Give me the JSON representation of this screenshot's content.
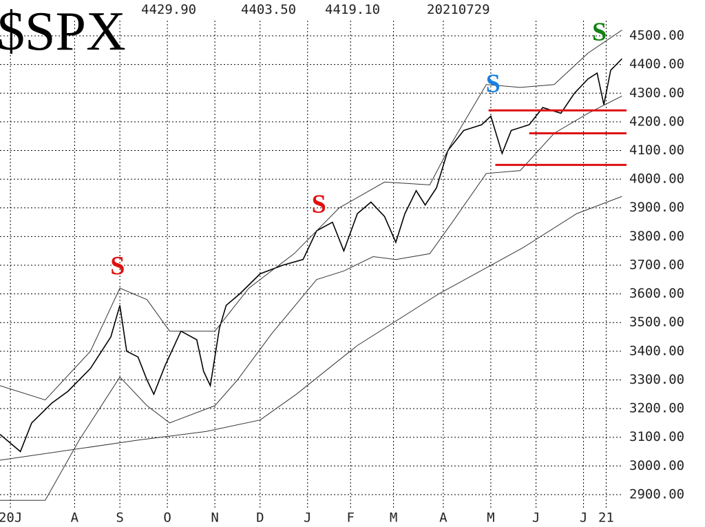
{
  "chart_data": {
    "type": "line",
    "title": "$SPX",
    "header": [
      "4429.90",
      "4403.50",
      "4419.10",
      "20210729"
    ],
    "xlim": [
      0,
      277
    ],
    "ylim": [
      2847,
      4625
    ],
    "grid": true,
    "xticks": [
      {
        "value": 4.6,
        "label": "20J"
      },
      {
        "value": 33,
        "label": "A"
      },
      {
        "value": 53,
        "label": "S"
      },
      {
        "value": 74,
        "label": "O"
      },
      {
        "value": 95,
        "label": "N"
      },
      {
        "value": 115,
        "label": "D"
      },
      {
        "value": 136,
        "label": "J"
      },
      {
        "value": 155,
        "label": "F"
      },
      {
        "value": 174,
        "label": "M"
      },
      {
        "value": 196,
        "label": "A"
      },
      {
        "value": 217,
        "label": "M"
      },
      {
        "value": 237,
        "label": "J"
      },
      {
        "value": 258,
        "label": "J"
      },
      {
        "value": 268,
        "label": "21"
      }
    ],
    "yticks": [
      {
        "value": 2900,
        "label": "2900.00"
      },
      {
        "value": 3000,
        "label": "3000.00"
      },
      {
        "value": 3100,
        "label": "3100.00"
      },
      {
        "value": 3200,
        "label": "3200.00"
      },
      {
        "value": 3300,
        "label": "3300.00"
      },
      {
        "value": 3400,
        "label": "3400.00"
      },
      {
        "value": 3500,
        "label": "3500.00"
      },
      {
        "value": 3600,
        "label": "3600.00"
      },
      {
        "value": 3700,
        "label": "3700.00"
      },
      {
        "value": 3800,
        "label": "3800.00"
      },
      {
        "value": 3900,
        "label": "3900.00"
      },
      {
        "value": 4000,
        "label": "4000.00"
      },
      {
        "value": 4100,
        "label": "4100.00"
      },
      {
        "value": 4200,
        "label": "4200.00"
      },
      {
        "value": 4300,
        "label": "4300.00"
      },
      {
        "value": 4400,
        "label": "4400.00"
      },
      {
        "value": 4500,
        "label": "4500.00"
      }
    ],
    "series": [
      {
        "color": "#000000",
        "width": 1.6,
        "x": [
          0,
          9,
          14,
          23,
          30,
          40,
          49,
          53,
          56,
          61,
          65,
          68,
          73,
          80,
          87,
          90,
          93,
          97,
          100,
          106,
          115,
          125,
          134,
          140,
          147,
          152,
          158,
          164,
          170,
          175,
          179,
          184,
          188,
          193,
          198,
          205,
          213,
          217,
          222,
          226,
          234,
          240,
          248,
          254,
          260,
          264,
          267,
          270,
          275
        ],
        "values": [
          3110,
          3050,
          3150,
          3220,
          3260,
          3340,
          3450,
          3560,
          3400,
          3380,
          3300,
          3250,
          3350,
          3470,
          3440,
          3330,
          3280,
          3480,
          3560,
          3600,
          3670,
          3700,
          3720,
          3820,
          3850,
          3750,
          3880,
          3920,
          3870,
          3780,
          3880,
          3960,
          3910,
          3970,
          4100,
          4170,
          4190,
          4220,
          4090,
          4170,
          4190,
          4250,
          4230,
          4300,
          4350,
          4370,
          4260,
          4380,
          4420
        ]
      },
      {
        "color": "#333333",
        "width": 1,
        "x": [
          0,
          61,
          91,
          115,
          131,
          158,
          194,
          231,
          255,
          275
        ],
        "values": [
          3020,
          3090,
          3120,
          3160,
          3250,
          3420,
          3600,
          3760,
          3880,
          3940
        ]
      },
      {
        "color": "#333333",
        "width": 1,
        "x": [
          0,
          20,
          40,
          53,
          65,
          75,
          95,
          110,
          130,
          150,
          170,
          190,
          200,
          215,
          230,
          245,
          260,
          275
        ],
        "values": [
          3280,
          3230,
          3400,
          3620,
          3580,
          3470,
          3470,
          3620,
          3740,
          3900,
          3990,
          3980,
          4130,
          4330,
          4320,
          4330,
          4440,
          4520
        ]
      },
      {
        "color": "#333333",
        "width": 1,
        "x": [
          0,
          20,
          35,
          53,
          65,
          75,
          95,
          105,
          120,
          140,
          152,
          165,
          175,
          190,
          200,
          215,
          230,
          245,
          260,
          275
        ],
        "values": [
          2880,
          2880,
          3090,
          3310,
          3210,
          3150,
          3210,
          3300,
          3460,
          3650,
          3680,
          3730,
          3720,
          3740,
          3850,
          4020,
          4030,
          4160,
          4230,
          4290
        ]
      }
    ],
    "hlines": [
      {
        "value": 4240,
        "from": 216,
        "color": "#dd1111"
      },
      {
        "value": 4160,
        "from": 234,
        "color": "#dd1111"
      },
      {
        "value": 4050,
        "from": 219,
        "color": "#dd1111"
      }
    ],
    "signals": [
      {
        "label": "S",
        "x": 52,
        "y": 3690,
        "color": "#e01010"
      },
      {
        "label": "S",
        "x": 141,
        "y": 3905,
        "color": "#e01010"
      },
      {
        "label": "S",
        "x": 218,
        "y": 4325,
        "color": "#1a7fe0"
      },
      {
        "label": "S",
        "x": 265,
        "y": 4505,
        "color": "#128012"
      }
    ]
  }
}
